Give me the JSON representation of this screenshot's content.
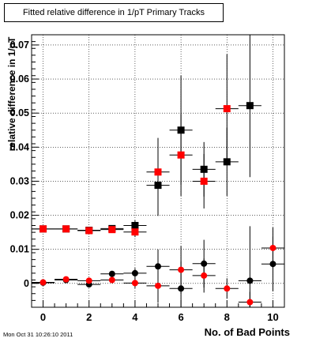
{
  "chart_data": {
    "type": "scatter",
    "title": "Fitted relative difference in 1/pT Primary Tracks",
    "xlabel": "No. of Bad Points",
    "ylabel": "relative difference in 1/pT",
    "xlim": [
      -0.5,
      10.5
    ],
    "ylim": [
      -0.007,
      0.073
    ],
    "xticks": [
      0,
      2,
      4,
      6,
      8,
      10
    ],
    "yticks": [
      0,
      0.01,
      0.02,
      0.03,
      0.04,
      0.05,
      0.06,
      0.07
    ],
    "ytick_labels": [
      "0",
      "0.01",
      "0.02",
      "0.03",
      "0.04",
      "0.05",
      "0.06",
      "0.07"
    ],
    "grid": true,
    "series": [
      {
        "marker": "square",
        "color": "#000000",
        "points": [
          {
            "x": 0,
            "y": 0.016,
            "yerr": 0.0004
          },
          {
            "x": 1,
            "y": 0.016,
            "yerr": 0.0004
          },
          {
            "x": 2,
            "y": 0.0156,
            "yerr": 0.0005
          },
          {
            "x": 3,
            "y": 0.0161,
            "yerr": 0.0008
          },
          {
            "x": 4,
            "y": 0.017,
            "yerr": 0.0015
          },
          {
            "x": 5,
            "y": 0.0288,
            "yerr": 0.009
          },
          {
            "x": 6,
            "y": 0.045,
            "yerr": 0.016
          },
          {
            "x": 7,
            "y": 0.0335,
            "yerr": 0.008
          },
          {
            "x": 8,
            "y": 0.0357,
            "yerr": 0.01
          },
          {
            "x": 9,
            "y": 0.0522,
            "yerr": 0.021
          }
        ]
      },
      {
        "marker": "square",
        "color": "#ff0000",
        "points": [
          {
            "x": 0,
            "y": 0.016,
            "yerr": 0.0004
          },
          {
            "x": 1,
            "y": 0.016,
            "yerr": 0.0004
          },
          {
            "x": 2,
            "y": 0.0155,
            "yerr": 0.0005
          },
          {
            "x": 3,
            "y": 0.0158,
            "yerr": 0.0008
          },
          {
            "x": 4,
            "y": 0.0151,
            "yerr": 0.0015
          },
          {
            "x": 5,
            "y": 0.0327,
            "yerr": 0.01
          },
          {
            "x": 6,
            "y": 0.0377,
            "yerr": 0.012
          },
          {
            "x": 7,
            "y": 0.03,
            "yerr": 0.008
          },
          {
            "x": 8,
            "y": 0.0513,
            "yerr": 0.016
          },
          {
            "x": 9,
            "y": null,
            "yerr": 0
          }
        ]
      },
      {
        "marker": "circle",
        "color": "#000000",
        "points": [
          {
            "x": 0,
            "y": 0.0002,
            "yerr": 0.0003
          },
          {
            "x": 1,
            "y": 0.001,
            "yerr": 0.0004
          },
          {
            "x": 2,
            "y": -0.0003,
            "yerr": 0.0006
          },
          {
            "x": 3,
            "y": 0.0028,
            "yerr": 0.0009
          },
          {
            "x": 4,
            "y": 0.003,
            "yerr": 0.0015
          },
          {
            "x": 5,
            "y": 0.005,
            "yerr": 0.005
          },
          {
            "x": 6,
            "y": -0.0015,
            "yerr": 0.008
          },
          {
            "x": 7,
            "y": 0.0058,
            "yerr": 0.007
          },
          {
            "x": 8,
            "y": null,
            "yerr": 0
          },
          {
            "x": 9,
            "y": 0.0008,
            "yerr": 0.016
          },
          {
            "x": 10,
            "y": 0.0057,
            "yerr": 0.008
          }
        ]
      },
      {
        "marker": "circle",
        "color": "#ff0000",
        "points": [
          {
            "x": 0,
            "y": 0.0003,
            "yerr": 0.0003
          },
          {
            "x": 1,
            "y": 0.0012,
            "yerr": 0.0004
          },
          {
            "x": 2,
            "y": 0.0008,
            "yerr": 0.0006
          },
          {
            "x": 3,
            "y": 0.001,
            "yerr": 0.0009
          },
          {
            "x": 4,
            "y": 0.0001,
            "yerr": 0.0015
          },
          {
            "x": 5,
            "y": -0.0007,
            "yerr": 0.005
          },
          {
            "x": 6,
            "y": 0.004,
            "yerr": 0.007
          },
          {
            "x": 7,
            "y": 0.0023,
            "yerr": 0.005
          },
          {
            "x": 8,
            "y": -0.0015,
            "yerr": 0.003
          },
          {
            "x": 9,
            "y": -0.0055,
            "yerr": 0.003
          },
          {
            "x": 10,
            "y": 0.0104,
            "yerr": 0.006
          }
        ]
      }
    ]
  },
  "footer": {
    "timestamp": "Mon Oct 31 10:26:10 2011"
  }
}
